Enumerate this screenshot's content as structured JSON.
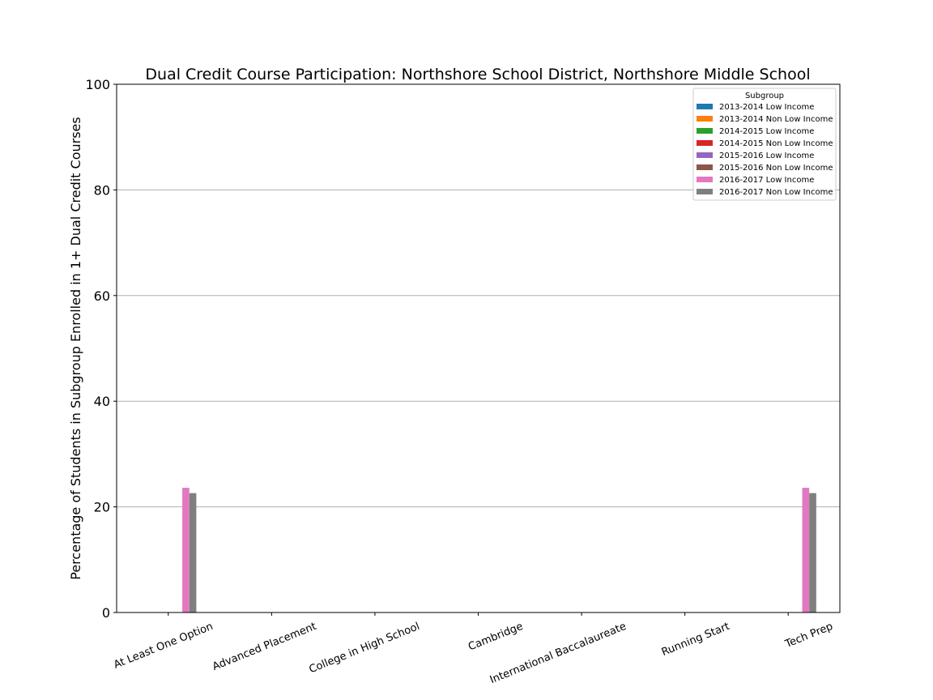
{
  "chart_data": {
    "type": "bar",
    "title": "Dual Credit Course Participation: Northshore School District, Northshore Middle School",
    "xlabel": "",
    "ylabel": "Percentage of Students in Subgroup Enrolled in 1+ Dual Credit Courses",
    "ylim": [
      0,
      100
    ],
    "yticks": [
      0,
      20,
      40,
      60,
      80,
      100
    ],
    "grid": "horizontal",
    "legend_title": "Subgroup",
    "legend_position": "top-right",
    "categories": [
      "At Least One Option",
      "Advanced Placement",
      "College in High School",
      "Cambridge",
      "International Baccalaureate",
      "Running Start",
      "Tech Prep"
    ],
    "series": [
      {
        "name": "2013-2014 Low Income",
        "color": "#1f77b4",
        "values": [
          0,
          0,
          0,
          0,
          0,
          0,
          0
        ]
      },
      {
        "name": "2013-2014 Non Low Income",
        "color": "#ff7f0e",
        "values": [
          0,
          0,
          0,
          0,
          0,
          0,
          0
        ]
      },
      {
        "name": "2014-2015 Low Income",
        "color": "#2ca02c",
        "values": [
          0,
          0,
          0,
          0,
          0,
          0,
          0
        ]
      },
      {
        "name": "2014-2015 Non Low Income",
        "color": "#d62728",
        "values": [
          0,
          0,
          0,
          0,
          0,
          0,
          0
        ]
      },
      {
        "name": "2015-2016 Low Income",
        "color": "#9467bd",
        "values": [
          0,
          0,
          0,
          0,
          0,
          0,
          0
        ]
      },
      {
        "name": "2015-2016 Non Low Income",
        "color": "#8c564b",
        "values": [
          0,
          0,
          0,
          0,
          0,
          0,
          0
        ]
      },
      {
        "name": "2016-2017 Low Income",
        "color": "#e377c2",
        "values": [
          23.6,
          0,
          0,
          0,
          0,
          0,
          23.6
        ]
      },
      {
        "name": "2016-2017 Non Low Income",
        "color": "#7f7f7f",
        "values": [
          22.6,
          0,
          0,
          0,
          0,
          0,
          22.6
        ]
      }
    ]
  }
}
